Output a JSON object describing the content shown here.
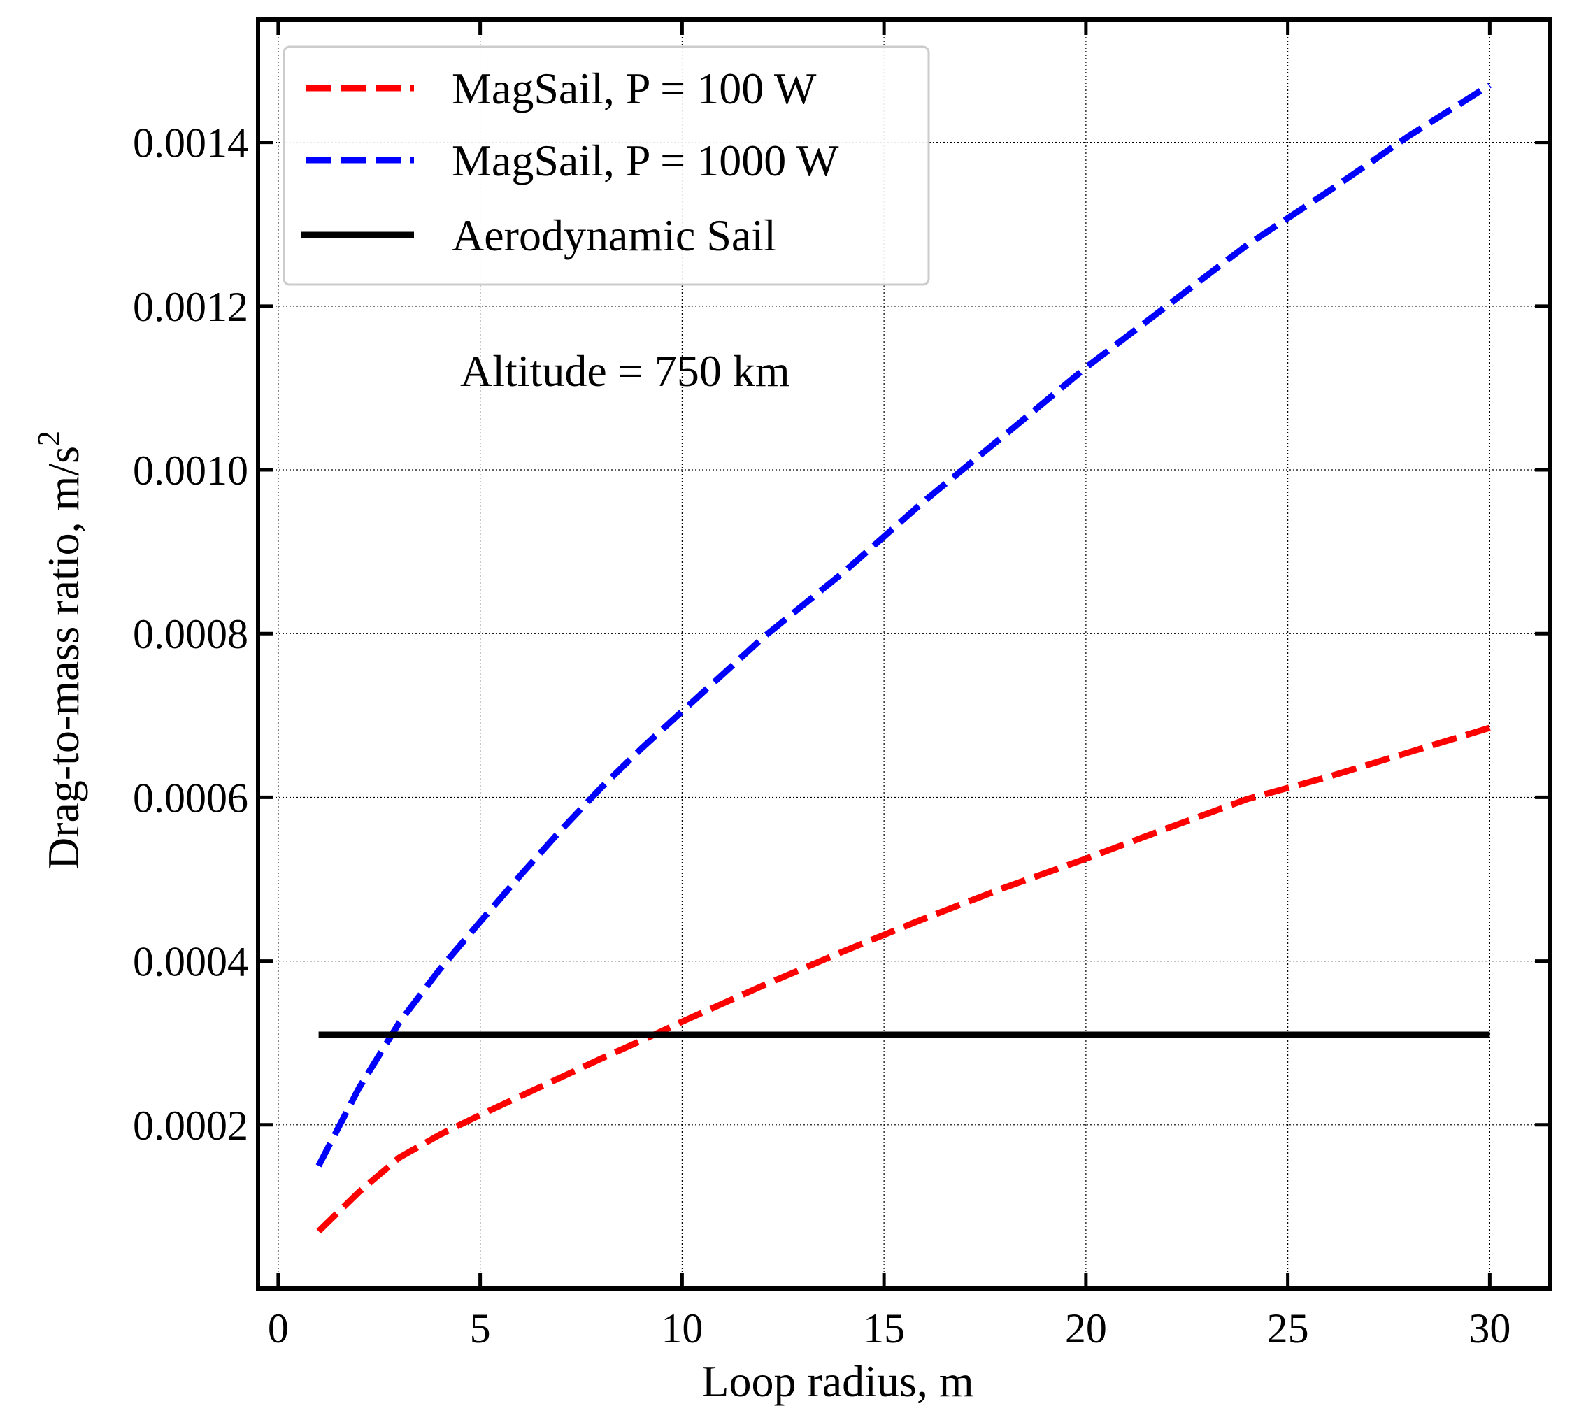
{
  "chart_data": {
    "type": "line",
    "xlabel": "Loop radius, m",
    "ylabel": "Drag-to-mass ratio, m/s",
    "ylabel_superscript": "2",
    "annotation": "Altitude = 750 km",
    "xlim": [
      -0.5,
      31.5
    ],
    "ylim": [
      0.0,
      0.00155
    ],
    "xticks": [
      0,
      5,
      10,
      15,
      20,
      25,
      30
    ],
    "xtick_labels": [
      "0",
      "5",
      "10",
      "15",
      "20",
      "25",
      "30"
    ],
    "yticks": [
      0.0002,
      0.0004,
      0.0006,
      0.0008,
      0.001,
      0.0012,
      0.0014
    ],
    "ytick_labels": [
      "0.0002",
      "0.0004",
      "0.0006",
      "0.0008",
      "0.0010",
      "0.0012",
      "0.0014"
    ],
    "grid": true,
    "legend_position": "top-left",
    "series": [
      {
        "name": "MagSail, P = 100 W",
        "color": "#ff0000",
        "style": "dashed",
        "x": [
          1,
          2,
          3,
          4,
          5,
          6,
          7,
          8,
          9,
          10,
          12,
          14,
          16,
          18,
          20,
          22,
          24,
          26,
          28,
          30
        ],
        "y": [
          7e-05,
          0.000118,
          0.00016,
          0.000188,
          0.000212,
          0.000235,
          0.000258,
          0.000281,
          0.000303,
          0.000326,
          0.00037,
          0.000412,
          0.000452,
          0.00049,
          0.000525,
          0.000562,
          0.000598,
          0.000625,
          0.000655,
          0.000685
        ]
      },
      {
        "name": "MagSail, P = 1000 W",
        "color": "#0000ff",
        "style": "dashed",
        "x": [
          1,
          2,
          3,
          4,
          5,
          6,
          7,
          8,
          9,
          10,
          12,
          14,
          16,
          18,
          20,
          22,
          24,
          26,
          28,
          30
        ],
        "y": [
          0.00015,
          0.000245,
          0.000325,
          0.00039,
          0.000448,
          0.000505,
          0.00056,
          0.000612,
          0.00066,
          0.000705,
          0.000795,
          0.000875,
          0.000962,
          0.001043,
          0.001125,
          0.0012,
          0.001275,
          0.00134,
          0.001408,
          0.00147
        ]
      },
      {
        "name": "Aerodynamic Sail",
        "color": "#000000",
        "style": "solid",
        "x": [
          1,
          30
        ],
        "y": [
          0.00031,
          0.00031
        ]
      }
    ]
  }
}
